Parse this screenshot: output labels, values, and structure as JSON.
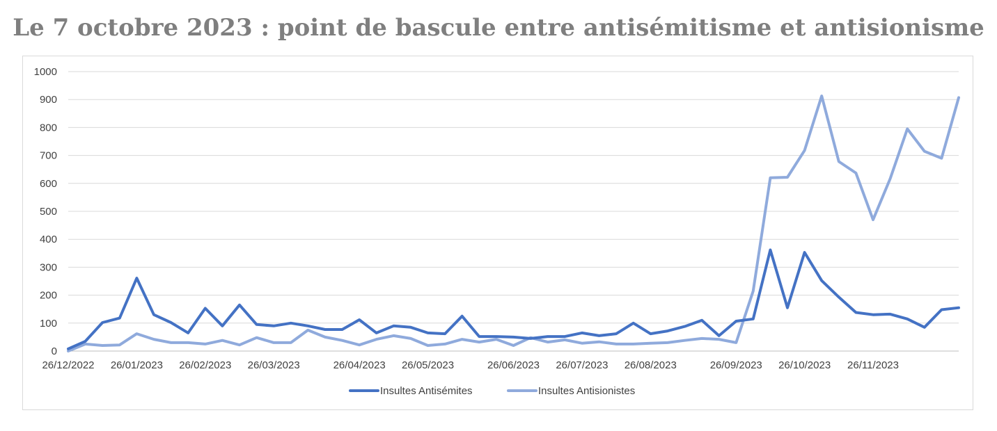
{
  "chart_data": {
    "type": "line",
    "title": "Le 7 octobre 2023 : point de bascule entre antisémitisme et antisionisme",
    "xlabel": "",
    "ylabel": "",
    "ylim": [
      0,
      1000
    ],
    "yticks": [
      0,
      100,
      200,
      300,
      400,
      500,
      600,
      700,
      800,
      900,
      1000
    ],
    "grid": true,
    "legend_position": "bottom",
    "x_tick_labels": [
      "26/12/2022",
      "26/01/2023",
      "26/02/2023",
      "26/03/2023",
      "26/04/2023",
      "26/05/2023",
      "26/06/2023",
      "26/07/2023",
      "26/08/2023",
      "26/09/2023",
      "26/10/2023",
      "26/11/2023"
    ],
    "x_tick_index": [
      0,
      4,
      8,
      12,
      17,
      21,
      26,
      30,
      34,
      39,
      43,
      47
    ],
    "series": [
      {
        "name": "Insultes Antisémites",
        "color": "#4472c4",
        "values": [
          8,
          35,
          102,
          118,
          261,
          130,
          102,
          65,
          153,
          90,
          165,
          95,
          90,
          100,
          90,
          77,
          77,
          112,
          65,
          90,
          85,
          65,
          62,
          125,
          52,
          52,
          50,
          45,
          52,
          52,
          65,
          55,
          62,
          100,
          62,
          72,
          88,
          110,
          55,
          107,
          115,
          362,
          155,
          353,
          252,
          193,
          138,
          130,
          132,
          115,
          85,
          148,
          155
        ]
      },
      {
        "name": "Insultes Antisionistes",
        "color": "#8faadc",
        "values": [
          0,
          25,
          20,
          22,
          62,
          42,
          30,
          30,
          25,
          38,
          22,
          48,
          30,
          30,
          75,
          50,
          38,
          22,
          42,
          55,
          45,
          20,
          25,
          42,
          32,
          42,
          20,
          48,
          32,
          40,
          28,
          33,
          25,
          25,
          28,
          30,
          38,
          45,
          42,
          30,
          215,
          620,
          622,
          718,
          913,
          678,
          637,
          470,
          617,
          795,
          715,
          690,
          907
        ]
      }
    ]
  }
}
